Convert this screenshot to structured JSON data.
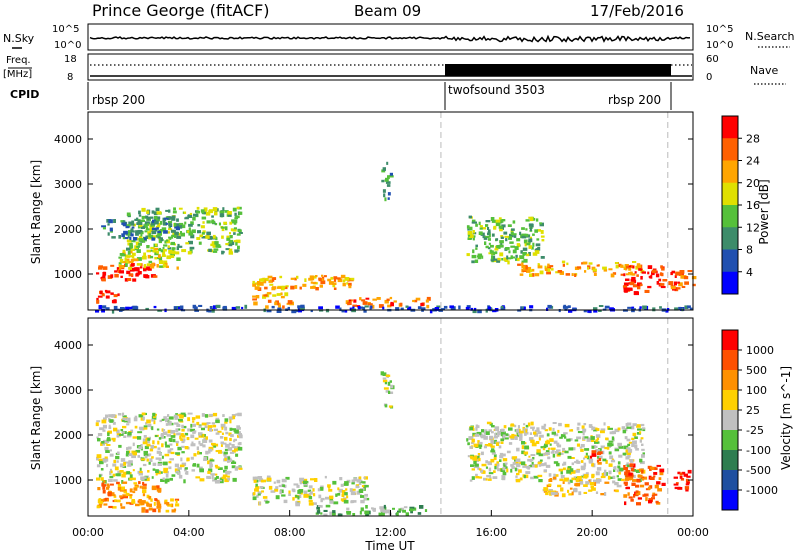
{
  "header": {
    "station": "Prince George (fitACF)",
    "beam": "Beam 09",
    "date": "17/Feb/2016"
  },
  "strips": {
    "nsky_label": "N.Sky",
    "nsky_ticks": [
      "10^5",
      "10^0"
    ],
    "nsearch_label": "N.Search",
    "nsearch_ticks": [
      "10^5",
      "10^0"
    ],
    "freq_label": "Freq.",
    "freq_unit": "[MHz]",
    "freq_ticks": [
      "18",
      "8"
    ],
    "nave_label": "Nave",
    "nave_ticks": [
      "60",
      "0"
    ],
    "cpid_label": "CPID",
    "cpid_segments": [
      {
        "label": "rbsp 200",
        "start_h": 0.0,
        "end_h": 14.0
      },
      {
        "label": "twofsound 3503",
        "start_h": 14.0,
        "end_h": 23.0
      },
      {
        "label": "rbsp 200",
        "start_h": 23.0,
        "end_h": 24.0
      }
    ]
  },
  "chart_data": [
    {
      "type": "heatmap",
      "panel": "power",
      "ylabel": "Slant Range [km]",
      "xlim": [
        0,
        24
      ],
      "ylim": [
        200,
        4600
      ],
      "yticks": [
        1000,
        2000,
        3000,
        4000
      ],
      "ytick_labels": [
        "1000",
        "2000",
        "3000",
        "4000"
      ],
      "colorbar_label": "Power [dB]",
      "colorbar_ticks": [
        "4",
        "8",
        "12",
        "16",
        "20",
        "24",
        "28"
      ],
      "colorbar_colors": [
        "#0000ff",
        "#2050b0",
        "#3d8c6a",
        "#55c03a",
        "#e0e000",
        "#ffa500",
        "#ff6000",
        "#ff0000"
      ],
      "mode_change_hours": [
        14.0,
        23.0
      ],
      "regions": [
        {
          "t0": 0.3,
          "t1": 2.6,
          "r0": 900,
          "r1": 1250,
          "level": 7
        },
        {
          "t0": 0.3,
          "t1": 1.2,
          "r0": 380,
          "r1": 650,
          "level": 7
        },
        {
          "t0": 1.2,
          "t1": 3.6,
          "r0": 1150,
          "r1": 1600,
          "level": 4
        },
        {
          "t0": 1.5,
          "t1": 6.0,
          "r0": 1500,
          "r1": 2500,
          "level": 3
        },
        {
          "t0": 0.5,
          "t1": 3.5,
          "r0": 1800,
          "r1": 2300,
          "level": 2
        },
        {
          "t0": 6.5,
          "t1": 10.5,
          "r0": 700,
          "r1": 1000,
          "level": 5
        },
        {
          "t0": 10.0,
          "t1": 13.5,
          "r0": 300,
          "r1": 500,
          "level": 6
        },
        {
          "t0": 6.5,
          "t1": 8.0,
          "r0": 300,
          "r1": 600,
          "level": 5
        },
        {
          "t0": 15.0,
          "t1": 18.0,
          "r0": 1300,
          "r1": 2300,
          "level": 3
        },
        {
          "t0": 17.0,
          "t1": 22.0,
          "r0": 1000,
          "r1": 1300,
          "level": 5
        },
        {
          "t0": 21.2,
          "t1": 22.8,
          "r0": 600,
          "r1": 1200,
          "level": 7
        },
        {
          "t0": 23.0,
          "t1": 24.0,
          "r0": 700,
          "r1": 1100,
          "level": 6
        },
        {
          "t0": 11.6,
          "t1": 12.0,
          "r0": 2600,
          "r1": 3500,
          "level": 2
        },
        {
          "t0": 0.0,
          "t1": 24.0,
          "r0": 200,
          "r1": 320,
          "level": 1
        }
      ]
    },
    {
      "type": "heatmap",
      "panel": "velocity",
      "ylabel": "Slant Range [km]",
      "xlabel": "Time UT",
      "xlim": [
        0,
        24
      ],
      "ylim": [
        200,
        4600
      ],
      "xticks": [
        0,
        4,
        8,
        12,
        16,
        20,
        24
      ],
      "xtick_labels": [
        "00:00",
        "04:00",
        "08:00",
        "12:00",
        "16:00",
        "20:00",
        "00:00"
      ],
      "yticks": [
        1000,
        2000,
        3000,
        4000
      ],
      "ytick_labels": [
        "1000",
        "2000",
        "3000",
        "4000"
      ],
      "colorbar_label": "Velocity [m s^-1]",
      "colorbar_ticks": [
        "1000",
        "500",
        "100",
        "25",
        "-25",
        "-100",
        "-500",
        "-1000"
      ],
      "colorbar_colors": [
        "#0000ff",
        "#1f4fa0",
        "#2e7d50",
        "#55c03a",
        "#c0c0c0",
        "#ffd000",
        "#ff9000",
        "#ff5000",
        "#ff0000"
      ],
      "mode_change_hours": [
        14.0,
        23.0
      ],
      "regions": [
        {
          "t0": 0.3,
          "t1": 6.0,
          "r0": 1000,
          "r1": 2500,
          "level": 4
        },
        {
          "t0": 0.3,
          "t1": 2.8,
          "r0": 400,
          "r1": 1000,
          "level": 6
        },
        {
          "t0": 2.0,
          "t1": 3.5,
          "r0": 300,
          "r1": 600,
          "level": 6
        },
        {
          "t0": 6.5,
          "t1": 11.0,
          "r0": 500,
          "r1": 1100,
          "level": 4
        },
        {
          "t0": 9.0,
          "t1": 13.5,
          "r0": 250,
          "r1": 450,
          "level": 3
        },
        {
          "t0": 15.0,
          "t1": 22.0,
          "r0": 1000,
          "r1": 2300,
          "level": 4
        },
        {
          "t0": 18.0,
          "t1": 21.0,
          "r0": 700,
          "r1": 1100,
          "level": 5
        },
        {
          "t0": 21.2,
          "t1": 22.8,
          "r0": 500,
          "r1": 1400,
          "level": 7
        },
        {
          "t0": 23.2,
          "t1": 23.8,
          "r0": 800,
          "r1": 1300,
          "level": 8
        },
        {
          "t0": 19.8,
          "t1": 20.3,
          "r0": 1400,
          "r1": 1700,
          "level": 7
        },
        {
          "t0": 11.6,
          "t1": 12.0,
          "r0": 2600,
          "r1": 3500,
          "level": 4
        }
      ]
    }
  ]
}
